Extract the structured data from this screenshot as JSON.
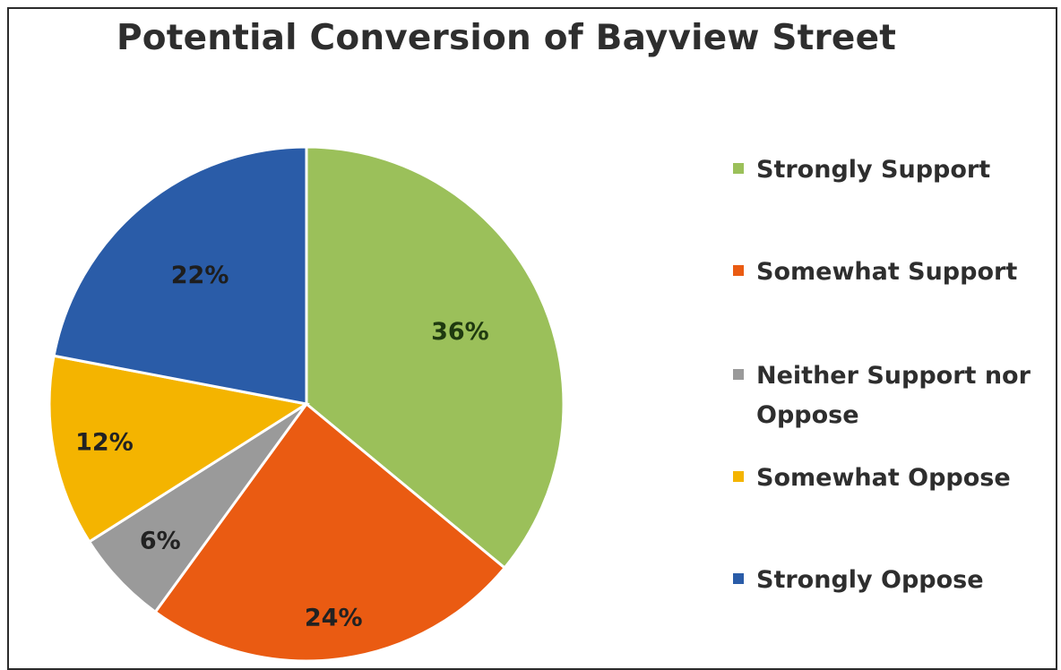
{
  "title": "Potential Conversion of Bayview Street",
  "colors": {
    "strongly_support": "#9bc05a",
    "somewhat_support": "#ea5b12",
    "neither": "#9a9a9a",
    "somewhat_oppose": "#f4b400",
    "strongly_oppose": "#2a5ca8",
    "label_dark": "#1f3a10"
  },
  "chart_data": {
    "type": "pie",
    "title": "Potential Conversion of Bayview Street",
    "legend_position": "right",
    "slices": [
      {
        "name": "Strongly Support",
        "value": 36,
        "label": "36%",
        "color": "#9bc05a"
      },
      {
        "name": "Somewhat Support",
        "value": 24,
        "label": "24%",
        "color": "#ea5b12"
      },
      {
        "name": "Neither Support nor Oppose",
        "value": 6,
        "label": "6%",
        "color": "#9a9a9a"
      },
      {
        "name": "Somewhat Oppose",
        "value": 12,
        "label": "12%",
        "color": "#f4b400"
      },
      {
        "name": "Strongly Oppose",
        "value": 22,
        "label": "22%",
        "color": "#2a5ca8"
      }
    ]
  },
  "legend": {
    "items": [
      {
        "label": "Strongly Support"
      },
      {
        "label": "Somewhat Support"
      },
      {
        "label": "Neither Support nor Oppose"
      },
      {
        "label": "Somewhat Oppose"
      },
      {
        "label": "Strongly Oppose"
      }
    ]
  }
}
